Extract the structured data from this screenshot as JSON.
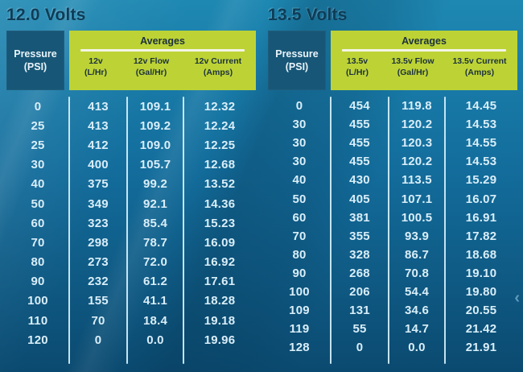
{
  "colors": {
    "background_top": "#1e88b2",
    "background_bottom": "#0b4a70",
    "pressure_box": "#175676",
    "header_green": "#bdd335",
    "header_text": "#1c313d",
    "underline": "#f3f4e6",
    "title_text": "#0e3c57",
    "data_text": "#d9eef9",
    "separator": "#d5f0fa"
  },
  "carousel": {
    "prev_icon": "‹"
  },
  "chart_data": [
    {
      "type": "table",
      "title": "12.0 Volts",
      "group_header": "Averages",
      "columns": [
        {
          "line1": "Pressure",
          "line2": "(PSI)"
        },
        {
          "line1": "12v",
          "line2": "(L/Hr)"
        },
        {
          "line1": "12v Flow",
          "line2": "(Gal/Hr)"
        },
        {
          "line1": "12v Current",
          "line2": "(Amps)"
        }
      ],
      "rows": [
        [
          "0",
          "413",
          "109.1",
          "12.32"
        ],
        [
          "25",
          "413",
          "109.2",
          "12.24"
        ],
        [
          "25",
          "412",
          "109.0",
          "12.25"
        ],
        [
          "30",
          "400",
          "105.7",
          "12.68"
        ],
        [
          "40",
          "375",
          "99.2",
          "13.52"
        ],
        [
          "50",
          "349",
          "92.1",
          "14.36"
        ],
        [
          "60",
          "323",
          "85.4",
          "15.23"
        ],
        [
          "70",
          "298",
          "78.7",
          "16.09"
        ],
        [
          "80",
          "273",
          "72.0",
          "16.92"
        ],
        [
          "90",
          "232",
          "61.2",
          "17.61"
        ],
        [
          "100",
          "155",
          "41.1",
          "18.28"
        ],
        [
          "110",
          "70",
          "18.4",
          "19.18"
        ],
        [
          "120",
          "0",
          "0.0",
          "19.96"
        ]
      ]
    },
    {
      "type": "table",
      "title": "13.5 Volts",
      "group_header": "Averages",
      "columns": [
        {
          "line1": "Pressure",
          "line2": "(PSI)"
        },
        {
          "line1": "13.5v",
          "line2": "(L/Hr)"
        },
        {
          "line1": "13.5v Flow",
          "line2": "(Gal/Hr)"
        },
        {
          "line1": "13.5v Current",
          "line2": "(Amps)"
        }
      ],
      "rows": [
        [
          "0",
          "454",
          "119.8",
          "14.45"
        ],
        [
          "30",
          "455",
          "120.2",
          "14.53"
        ],
        [
          "30",
          "455",
          "120.3",
          "14.55"
        ],
        [
          "30",
          "455",
          "120.2",
          "14.53"
        ],
        [
          "40",
          "430",
          "113.5",
          "15.29"
        ],
        [
          "50",
          "405",
          "107.1",
          "16.07"
        ],
        [
          "60",
          "381",
          "100.5",
          "16.91"
        ],
        [
          "70",
          "355",
          "93.9",
          "17.82"
        ],
        [
          "80",
          "328",
          "86.7",
          "18.68"
        ],
        [
          "90",
          "268",
          "70.8",
          "19.10"
        ],
        [
          "100",
          "206",
          "54.4",
          "19.80"
        ],
        [
          "109",
          "131",
          "34.6",
          "20.55"
        ],
        [
          "119",
          "55",
          "14.7",
          "21.42"
        ],
        [
          "128",
          "0",
          "0.0",
          "21.91"
        ]
      ]
    }
  ]
}
